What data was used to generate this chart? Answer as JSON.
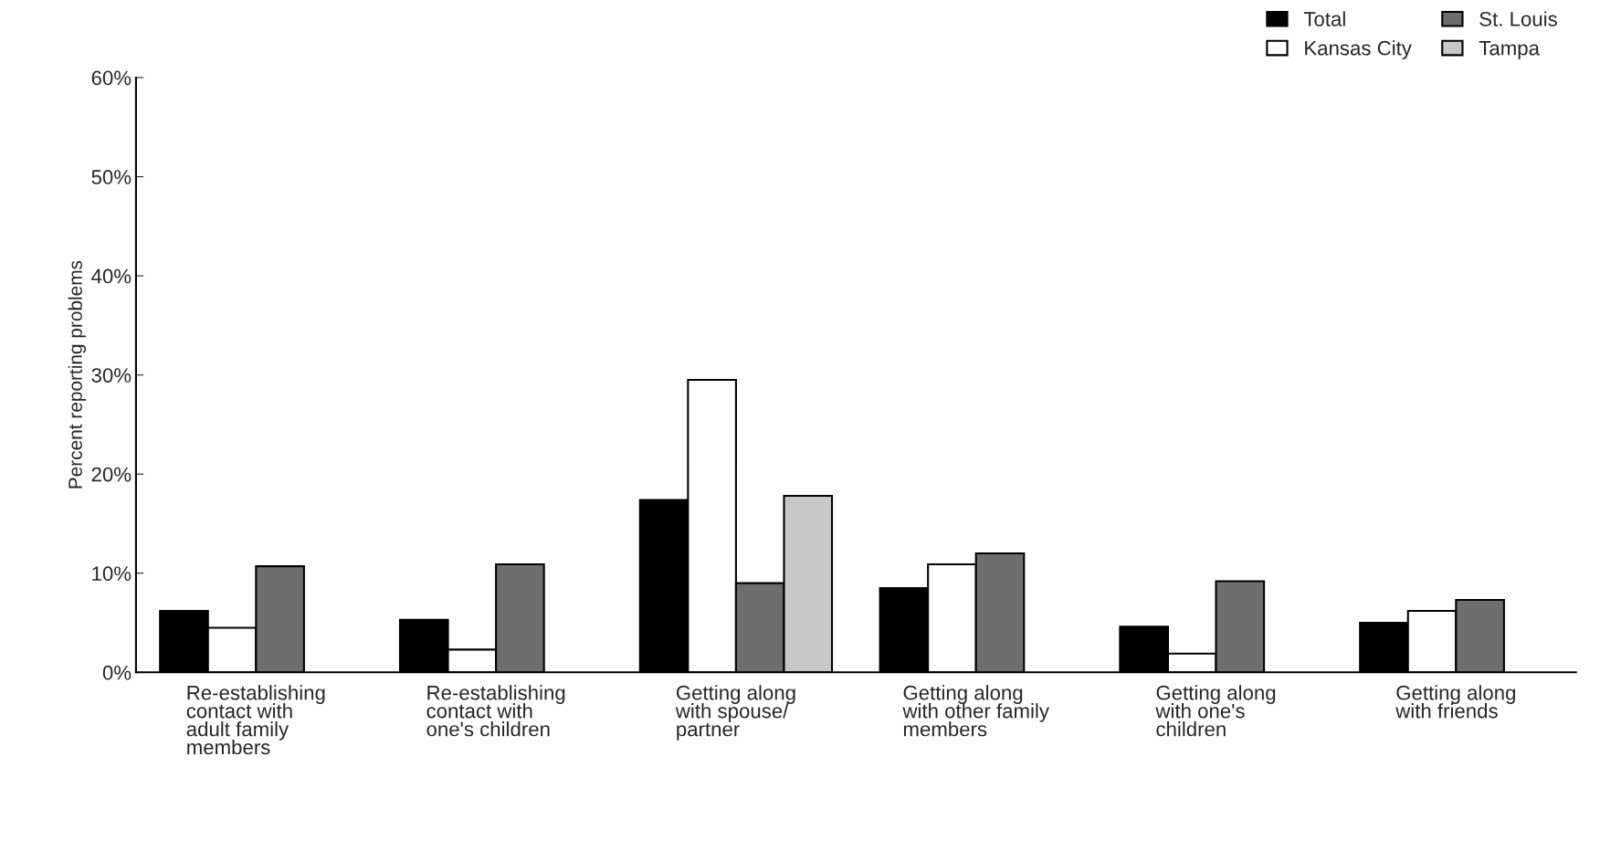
{
  "chart_data": {
    "type": "bar",
    "ylabel": "Percent reporting problems",
    "categories": [
      "Re-establishing\ncontact with\nadult family\nmembers",
      "Re-establishing\ncontact with\none's children",
      "Getting along\nwith spouse/\npartner",
      "Getting along\nwith other family\nmembers",
      "Getting along\nwith one's\nchildren",
      "Getting along\nwith friends"
    ],
    "series": [
      {
        "name": "Total",
        "color": "#000000",
        "values": [
          6.2,
          5.3,
          17.4,
          8.5,
          4.6,
          5.0
        ]
      },
      {
        "name": "Kansas City",
        "color": "#ffffff",
        "values": [
          4.5,
          2.3,
          29.5,
          10.9,
          1.9,
          6.2
        ]
      },
      {
        "name": "St. Louis",
        "color": "#6e6e6e",
        "values": [
          10.7,
          10.9,
          9.0,
          12.0,
          9.2,
          7.3
        ]
      },
      {
        "name": "Tampa",
        "color": "#c8c8c8",
        "values": [
          null,
          null,
          17.8,
          null,
          null,
          null
        ]
      }
    ],
    "ylim": [
      0,
      60
    ],
    "yticks": [
      {
        "value": 0,
        "label": "0%"
      },
      {
        "value": 10,
        "label": "10%"
      },
      {
        "value": 20,
        "label": "20%"
      },
      {
        "value": 30,
        "label": "30%"
      },
      {
        "value": 40,
        "label": "40%"
      },
      {
        "value": 50,
        "label": "50%"
      },
      {
        "value": 60,
        "label": "60%"
      }
    ],
    "grid": false,
    "legend": "top right"
  }
}
